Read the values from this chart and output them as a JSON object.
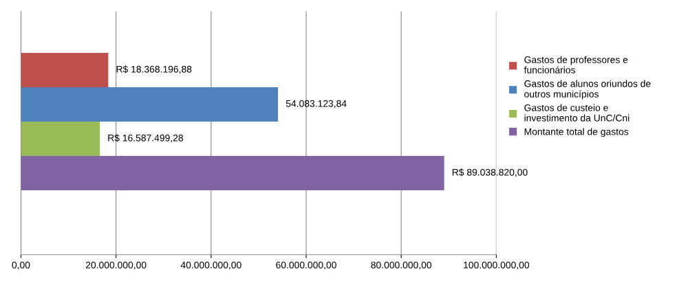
{
  "chart_data": {
    "type": "bar",
    "orientation": "horizontal",
    "categories": [
      null
    ],
    "series": [
      {
        "name": "Gastos de professores e funcionários",
        "color": "#c0504d",
        "values": [
          18368196.88
        ],
        "value_labels": [
          "R$ 18.368.196,88"
        ]
      },
      {
        "name": "Gastos de alunos oriundos de outros municípios",
        "color": "#4f81bd",
        "values": [
          54083123.84
        ],
        "value_labels": [
          "54.083.123,84"
        ]
      },
      {
        "name": "Gastos de custeio e investimento da UnC/Cni",
        "color": "#9bbb59",
        "values": [
          16587499.28
        ],
        "value_labels": [
          "R$ 16.587.499,28"
        ]
      },
      {
        "name": "Montante total de gastos",
        "color": "#8064a2",
        "values": [
          89038820.0
        ],
        "value_labels": [
          "R$ 89.038.820,00"
        ]
      }
    ],
    "xlim": [
      0,
      100000000
    ],
    "xticks": [
      {
        "value": 0,
        "label": "0,00"
      },
      {
        "value": 20000000,
        "label": "20.000.000,00"
      },
      {
        "value": 40000000,
        "label": "40.000.000,00"
      },
      {
        "value": 60000000,
        "label": "60.000.000,00"
      },
      {
        "value": 80000000,
        "label": "80.000.000,00"
      },
      {
        "value": 100000000,
        "label": "100.000.000,00"
      }
    ],
    "grid": "x",
    "legend": "right"
  }
}
